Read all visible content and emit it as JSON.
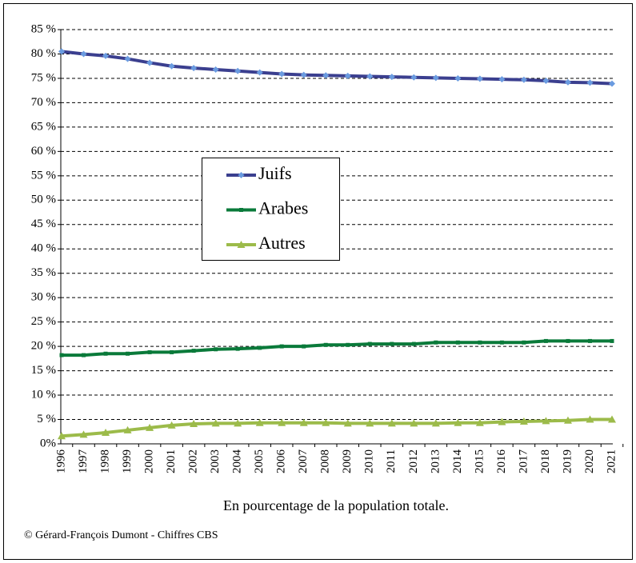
{
  "chart_data": {
    "type": "line",
    "categories": [
      "1996",
      "1997",
      "1998",
      "1999",
      "2000",
      "2001",
      "2002",
      "2003",
      "2004",
      "2005",
      "2006",
      "2007",
      "2008",
      "2009",
      "2010",
      "2011",
      "2012",
      "2013",
      "2014",
      "2015",
      "2016",
      "2017",
      "2018",
      "2019",
      "2020",
      "2021"
    ],
    "series": [
      {
        "name": "Juifs",
        "color": "#3b3f8f",
        "marker_color": "#6a9be0",
        "marker": "diamond",
        "values": [
          80.5,
          80.0,
          79.6,
          79.0,
          78.2,
          77.5,
          77.1,
          76.8,
          76.5,
          76.2,
          75.9,
          75.7,
          75.6,
          75.5,
          75.4,
          75.3,
          75.2,
          75.1,
          75.0,
          74.9,
          74.8,
          74.7,
          74.5,
          74.2,
          74.1,
          73.9
        ]
      },
      {
        "name": "Arabes",
        "color": "#0a7a3a",
        "marker_color": "#0a7a3a",
        "marker": "square",
        "values": [
          18.2,
          18.2,
          18.5,
          18.5,
          18.8,
          18.8,
          19.1,
          19.4,
          19.5,
          19.7,
          20.0,
          20.0,
          20.3,
          20.3,
          20.5,
          20.5,
          20.5,
          20.8,
          20.8,
          20.8,
          20.8,
          20.8,
          21.1,
          21.1,
          21.1,
          21.1
        ]
      },
      {
        "name": "Autres",
        "color": "#9cbb4a",
        "marker_color": "#9cbb4a",
        "marker": "triangle",
        "values": [
          1.6,
          1.9,
          2.3,
          2.8,
          3.3,
          3.8,
          4.1,
          4.2,
          4.2,
          4.3,
          4.3,
          4.3,
          4.3,
          4.2,
          4.2,
          4.2,
          4.2,
          4.2,
          4.3,
          4.3,
          4.5,
          4.6,
          4.7,
          4.8,
          5.0,
          5.0
        ]
      }
    ],
    "ylim": [
      0,
      85
    ],
    "yticks": [
      {
        "value": 0,
        "label": "0%"
      },
      {
        "value": 5,
        "label": "5 %"
      },
      {
        "value": 10,
        "label": "10 %"
      },
      {
        "value": 15,
        "label": "15 %"
      },
      {
        "value": 20,
        "label": "20 %"
      },
      {
        "value": 25,
        "label": "25 %"
      },
      {
        "value": 30,
        "label": "30 %"
      },
      {
        "value": 35,
        "label": "35 %"
      },
      {
        "value": 40,
        "label": "40 %"
      },
      {
        "value": 45,
        "label": "45 %"
      },
      {
        "value": 50,
        "label": "50 %"
      },
      {
        "value": 55,
        "label": "55 %"
      },
      {
        "value": 60,
        "label": "60 %"
      },
      {
        "value": 65,
        "label": "65 %"
      },
      {
        "value": 70,
        "label": "70 %"
      },
      {
        "value": 75,
        "label": "75 %"
      },
      {
        "value": 80,
        "label": "80 %"
      },
      {
        "value": 85,
        "label": "85 %"
      }
    ],
    "grid": true,
    "xlabel": "En pourcentage de la population totale.",
    "source": "© Gérard-François Dumont - Chiffres CBS"
  }
}
